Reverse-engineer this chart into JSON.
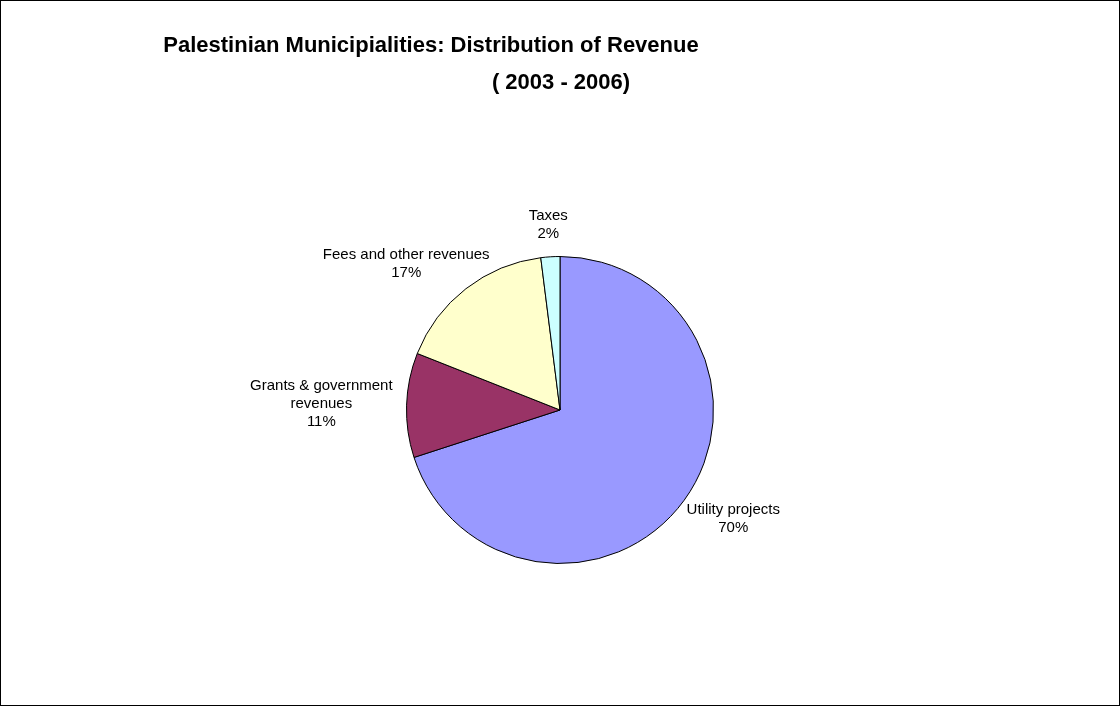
{
  "chart_data": {
    "type": "pie",
    "title": "Palestinian Municipialities: Distribution of Revenue",
    "subtitle": "( 2003 - 2006)",
    "categories": [
      "Utility projects",
      "Grants & government revenues",
      "Fees and other revenues",
      "Taxes"
    ],
    "values": [
      70,
      11,
      17,
      2
    ],
    "colors": [
      "#9999ff",
      "#993366",
      "#ffffcc",
      "#ccffff"
    ],
    "value_labels": [
      "70%",
      "11%",
      "17%",
      "2%"
    ],
    "legend": false
  }
}
